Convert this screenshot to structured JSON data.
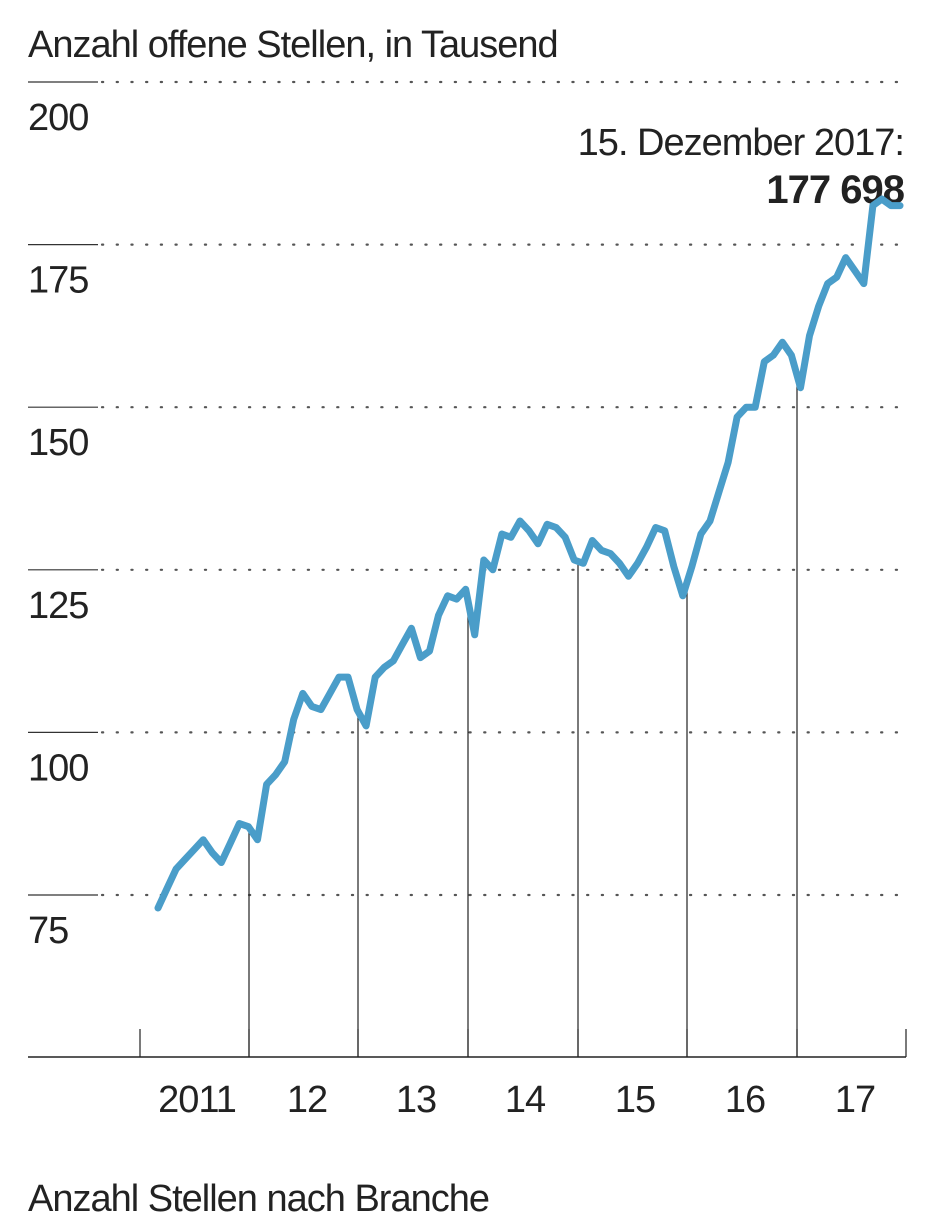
{
  "chart_data": {
    "type": "line",
    "title": "Anzahl offene Stellen, in Tausend",
    "y_ticks": [
      75,
      100,
      125,
      150,
      175,
      200
    ],
    "ylim": [
      50,
      200
    ],
    "x_tick_labels": [
      "2011",
      "12",
      "13",
      "14",
      "15",
      "16",
      "17"
    ],
    "grid": "dotted horizontal",
    "annotation": {
      "label": "15. Dezember 2017:",
      "value": "177 698"
    },
    "series": [
      {
        "color": "#4a9dc9",
        "values": [
          73,
          76,
          79,
          80.5,
          82,
          83.5,
          81.5,
          80,
          83,
          86,
          85.5,
          83.5,
          92,
          93.5,
          95.5,
          102,
          106,
          104,
          103.5,
          106,
          108.5,
          108.5,
          103.5,
          101,
          108.5,
          110,
          111,
          113.5,
          116,
          111.5,
          112.5,
          118,
          121,
          120.5,
          122,
          115,
          126.5,
          125,
          130.5,
          130,
          132.5,
          131,
          129,
          132,
          131.5,
          130,
          126.5,
          126,
          129.5,
          128,
          127.5,
          126,
          124,
          126,
          128.5,
          131.5,
          131,
          125.5,
          121,
          125.5,
          130.5,
          132.5,
          137,
          141.5,
          148.5,
          150,
          150,
          157,
          158,
          160,
          158,
          153,
          161,
          165.5,
          169,
          170,
          173,
          171,
          169,
          181,
          182,
          181,
          181
        ]
      }
    ]
  },
  "footer_text": "Anzahl Stellen nach Branche"
}
